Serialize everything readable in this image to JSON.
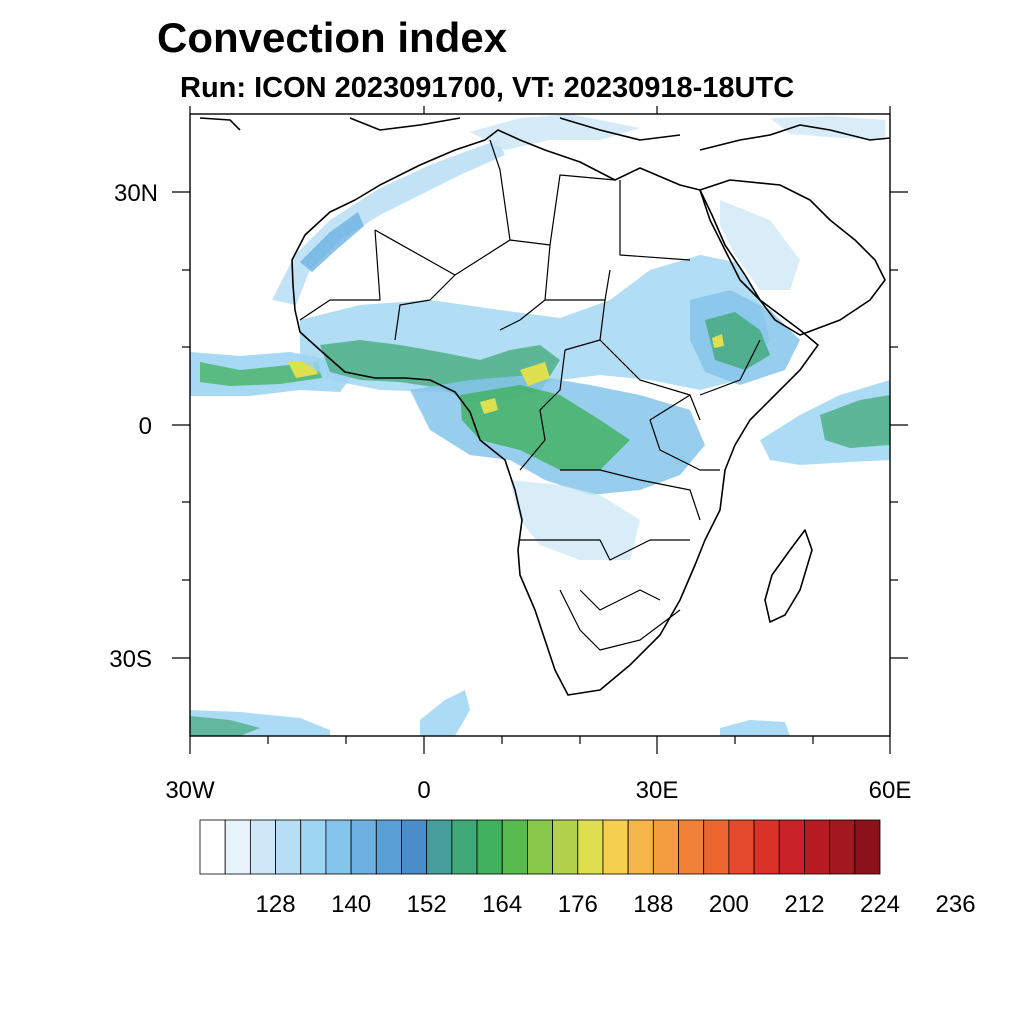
{
  "title": "Convection index",
  "subtitle": "Run: ICON 2023091700,  VT: 20230918-18UTC",
  "map": {
    "region": "Africa",
    "lon_range": [
      -30,
      60
    ],
    "lat_range": [
      -40,
      40
    ],
    "y_tick_labels": [
      "30N",
      "0",
      "30S"
    ],
    "x_tick_labels": [
      "30W",
      "0",
      "30E",
      "60E"
    ]
  },
  "colorbar": {
    "labels": [
      "128",
      "140",
      "152",
      "164",
      "176",
      "188",
      "200",
      "212",
      "224",
      "236"
    ],
    "colors": [
      "#ffffff",
      "#e8f4fb",
      "#cfe8f7",
      "#b7def5",
      "#9ed5f3",
      "#85c4ea",
      "#6cb1e2",
      "#5a9ed6",
      "#4a8dc9",
      "#469f9c",
      "#41a977",
      "#3fb05b",
      "#58bb4d",
      "#88c74a",
      "#b3d24b",
      "#dfe04f",
      "#f5d04e",
      "#f6b548",
      "#f49c40",
      "#f08237",
      "#ec6630",
      "#e44a2b",
      "#d83229",
      "#c92328",
      "#b71c24",
      "#a3171f",
      "#8c121a"
    ]
  }
}
